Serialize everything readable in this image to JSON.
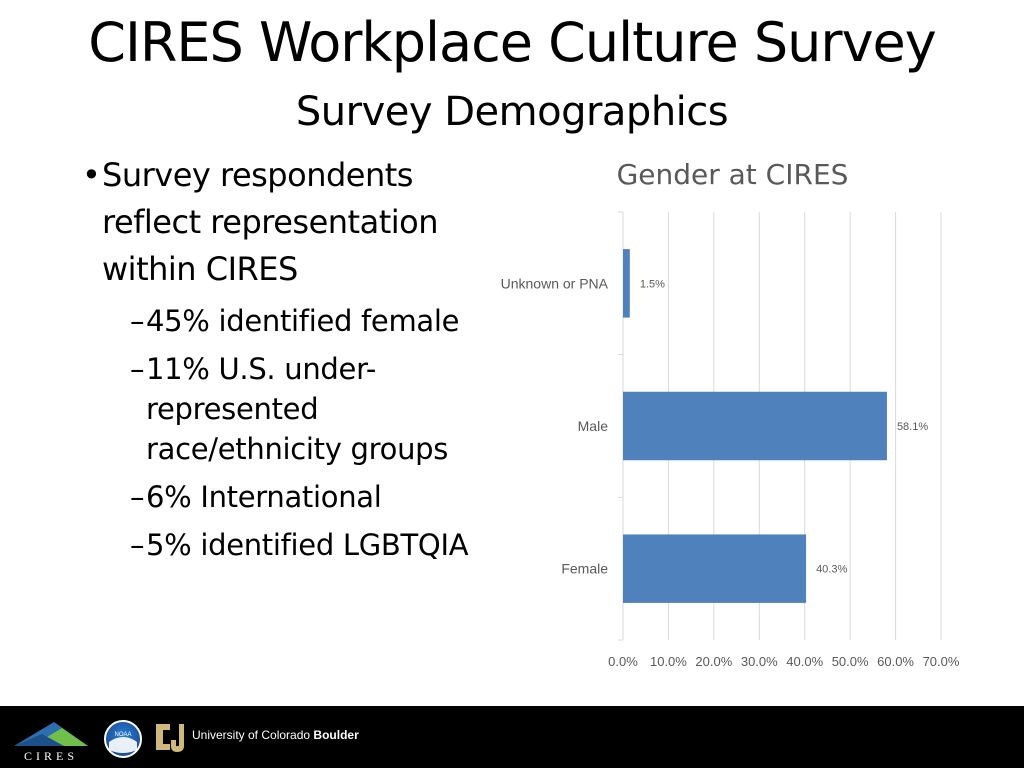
{
  "slide": {
    "title": "CIRES Workplace Culture Survey",
    "subtitle": "Survey Demographics"
  },
  "bullets": {
    "main": "Survey respondents reflect representation within CIRES",
    "marker": "•",
    "dash": "–",
    "subs": [
      "45% identified female",
      "11% U.S. under-represented race/ethnicity groups",
      "6% International",
      "5% identified LGBTQIA"
    ]
  },
  "footer": {
    "cires_logo_text": "CIRES",
    "noaa_logo_text": "NOAA",
    "university_prefix": "University of Colorado",
    "university_suffix": "Boulder"
  },
  "colors": {
    "bar": "#4f81bd",
    "grid": "#d9d9d9",
    "axis_text": "#595959",
    "footer_bg": "#000000"
  },
  "chart_data": {
    "type": "bar",
    "orientation": "horizontal",
    "title": "Gender at CIRES",
    "categories": [
      "Unknown or PNA",
      "Male",
      "Female"
    ],
    "values": [
      1.5,
      58.1,
      40.3
    ],
    "data_labels": [
      "1.5%",
      "58.1%",
      "40.3%"
    ],
    "xlim": [
      0,
      70
    ],
    "x_ticks": [
      0,
      10,
      20,
      30,
      40,
      50,
      60,
      70
    ],
    "x_tick_labels": [
      "0.0%",
      "10.0%",
      "20.0%",
      "30.0%",
      "40.0%",
      "50.0%",
      "60.0%",
      "70.0%"
    ],
    "grid": "vertical",
    "legend": "none"
  }
}
